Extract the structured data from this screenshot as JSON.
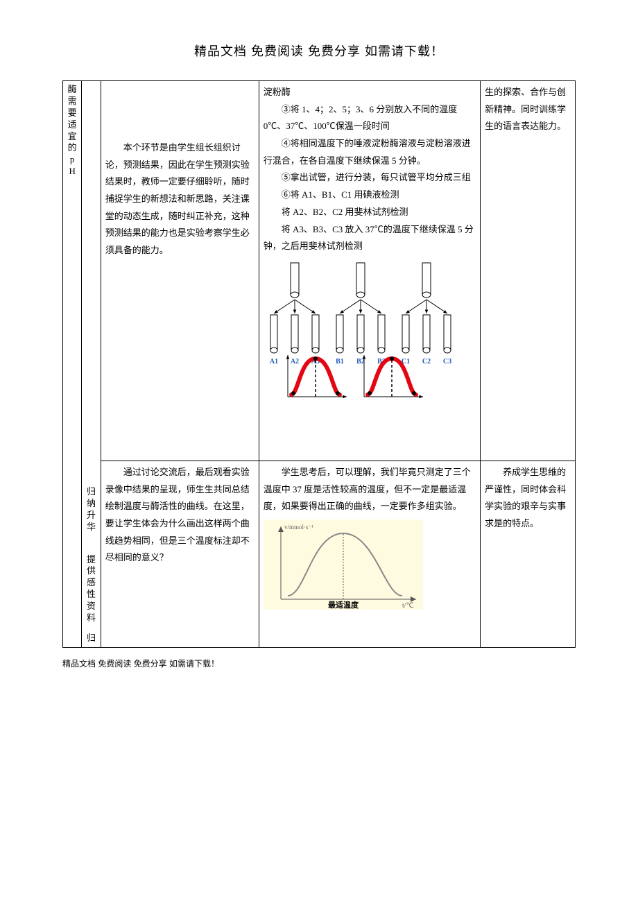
{
  "header": "精品文档 免费阅读 免费分享 如需请下载！",
  "footer": "精品文档 免费阅读 免费分享 如需请下载！",
  "leftcol": {
    "section_title": "酶需要适宜的pH"
  },
  "col2": {
    "a": "归纳升华",
    "b": "提供感性资料",
    "c": "归"
  },
  "teacher": {
    "p1": "本个环节是由学生组长组织讨论，预测结果，因此在学生预测实验结果时，教师一定要仔细聆听，随时捕捉学生的新想法和新思路，关注课堂的动态生成，随时纠正补充，这种预测结果的能力也是实验考察学生必须具备的能力。",
    "p2": "通过讨论交流后，最后观看实验录像中结果的呈现，师生生共同总结绘制温度与酶活性的曲线。在这里，要让学生体会为什么画出这样两个曲线趋势相同，但是三个温度标注却不尽相同的意义？"
  },
  "student": {
    "s0": "淀粉酶",
    "s1": "③将 1、4；2、5；3、6 分别放入不同的温度 0℃、37℃、100℃保温一段时间",
    "s2": "④将相同温度下的唾液淀粉酶溶液与淀粉溶液进行混合，在各自温度下继续保温 5 分钟。",
    "s3": "⑤拿出试管，进行分装，每只试管平均分成三组",
    "s4": "⑥将 A1、B1、C1 用碘液检测",
    "s5": "将 A2、B2、C2 用斐林试剂检测",
    "s6": "将 A3、B3、C3 放入 37℃的温度下继续保温 5 分钟，之后用斐林试剂检测",
    "s7": "学生思考后，可以理解，我们毕竟只测定了三个温度中 37 度是活性较高的温度，但不一定是最适温度，如果要得出正确的曲线，一定要作多组实验。"
  },
  "purpose": {
    "p1": "生的探索、合作与创新精神。同时训练学生的语言表达能力。",
    "p2": "养成学生思维的严谨性，同时体会科学实验的艰辛与实事求是的特点。"
  },
  "tube_diagram": {
    "labels": [
      "A1",
      "A2",
      "A3",
      "B1",
      "B2",
      "B3",
      "C1",
      "C2",
      "C3"
    ],
    "label_color": "#2056b8",
    "tube_stroke": "#000000",
    "arrow_stroke": "#000000"
  },
  "bell_curves": {
    "curve_color": "#e30613",
    "axis_color": "#000000",
    "dash_color": "#000000",
    "point_color": "#000000",
    "curve_width": 6,
    "dot_r": 3
  },
  "lower_chart": {
    "bg": "#fffbe0",
    "curve": "#888888",
    "axis": "#555555",
    "ylabel": "v/mmol·s⁻¹",
    "xlabel_right": "t/℃",
    "xlabel_center": "最适温度",
    "font_color": "#666666"
  }
}
